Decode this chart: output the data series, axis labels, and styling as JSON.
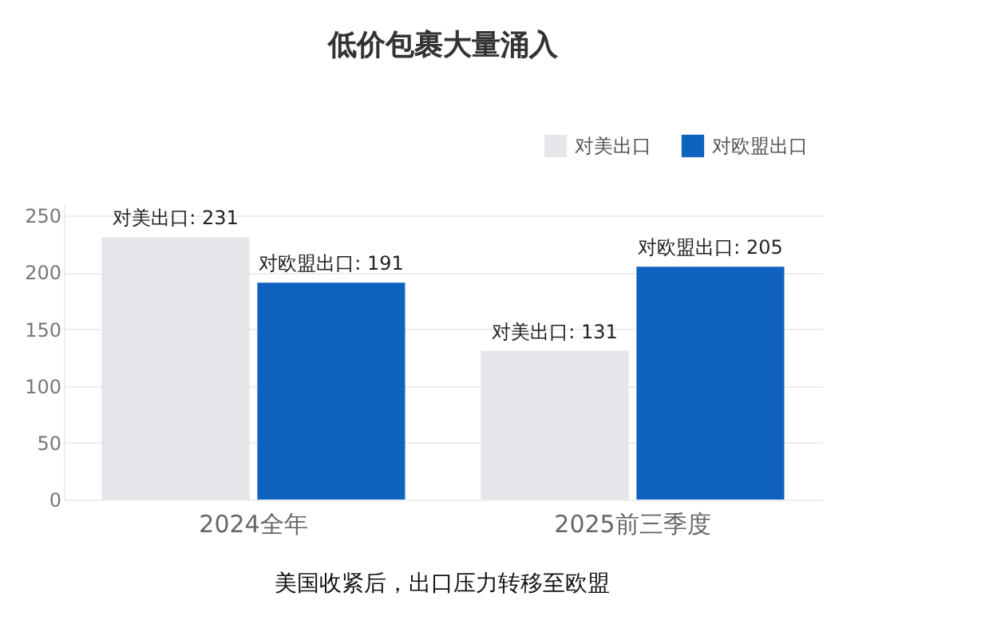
{
  "chart_data": {
    "type": "bar",
    "title": "低价包裹大量涌入",
    "categories": [
      "2024全年",
      "2025前三季度"
    ],
    "series": [
      {
        "name": "对美出口",
        "color": "#e5e6ea",
        "values": [
          231,
          131
        ],
        "value_labels": [
          "对美出口: 231",
          "对美出口: 131"
        ]
      },
      {
        "name": "对欧盟出口",
        "color": "#0f62bf",
        "values": [
          191,
          205
        ],
        "value_labels": [
          "对欧盟出口: 191",
          "对欧盟出口: 205"
        ]
      }
    ],
    "ylim": [
      0,
      260
    ],
    "yticks": [
      0,
      50,
      100,
      150,
      200,
      250
    ],
    "grid": "y",
    "legend": "top right",
    "annotations": [
      "美国收紧后，出口压力转移至欧盟"
    ]
  }
}
